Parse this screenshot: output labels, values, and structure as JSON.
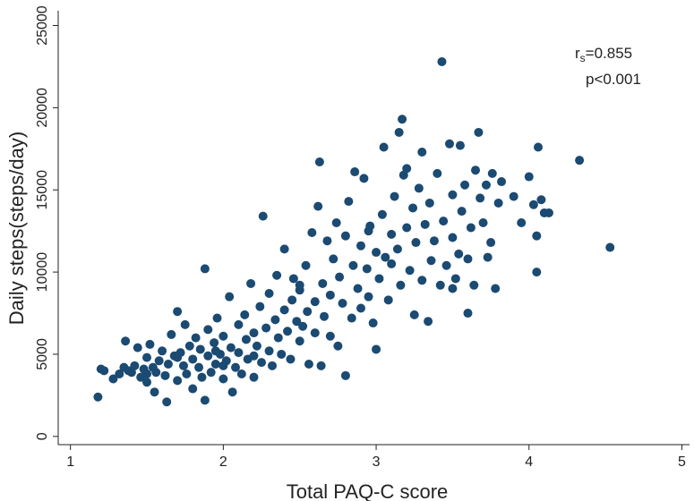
{
  "chart_data": {
    "type": "scatter",
    "x_label": "Total PAQ-C score",
    "y_label": "Daily steps(steps/day)",
    "annotation": {
      "stat_symbol": "r",
      "stat_subscript": "s",
      "stat_value": "=0.855",
      "p_value": "p<0.001"
    },
    "color": "#1b4a72",
    "xlim": [
      0.92,
      5.05
    ],
    "xticks": [
      1,
      2,
      3,
      4,
      5
    ],
    "ylim": [
      -500,
      25900
    ],
    "yticks": [
      0,
      5000,
      10000,
      15000,
      20000,
      25000
    ],
    "grid": false,
    "x": [
      1.18,
      1.2,
      1.22,
      1.28,
      1.32,
      1.35,
      1.36,
      1.38,
      1.4,
      1.42,
      1.44,
      1.46,
      1.48,
      1.5,
      1.5,
      1.52,
      1.54,
      1.55,
      1.56,
      1.58,
      1.6,
      1.62,
      1.63,
      1.64,
      1.66,
      1.68,
      1.7,
      1.7,
      1.72,
      1.74,
      1.75,
      1.76,
      1.78,
      1.8,
      1.8,
      1.82,
      1.84,
      1.85,
      1.86,
      1.88,
      1.88,
      1.9,
      1.9,
      1.92,
      1.94,
      1.95,
      1.96,
      1.98,
      2.0,
      2.0,
      2.02,
      2.04,
      2.05,
      2.06,
      2.08,
      2.1,
      2.1,
      2.12,
      2.14,
      2.15,
      2.16,
      2.18,
      2.2,
      2.2,
      2.22,
      2.24,
      2.25,
      2.26,
      2.28,
      2.3,
      2.3,
      2.32,
      2.34,
      2.35,
      2.36,
      2.38,
      2.4,
      2.4,
      2.42,
      2.44,
      2.45,
      2.46,
      2.48,
      2.5,
      2.5,
      2.52,
      2.54,
      2.55,
      2.56,
      2.58,
      2.6,
      2.6,
      2.62,
      2.63,
      2.64,
      2.65,
      2.66,
      2.68,
      2.7,
      2.7,
      2.72,
      2.74,
      2.75,
      2.76,
      2.78,
      2.8,
      2.8,
      2.82,
      2.84,
      2.85,
      2.86,
      2.88,
      2.9,
      2.9,
      2.92,
      2.94,
      2.95,
      2.96,
      2.98,
      3.0,
      3.0,
      3.02,
      3.04,
      3.05,
      3.06,
      3.08,
      3.1,
      3.12,
      3.14,
      3.15,
      3.16,
      3.17,
      3.18,
      3.2,
      3.2,
      3.22,
      3.24,
      3.25,
      3.26,
      3.28,
      3.3,
      3.3,
      3.32,
      3.34,
      3.35,
      3.36,
      3.38,
      3.4,
      3.42,
      3.43,
      3.44,
      3.46,
      3.48,
      3.5,
      3.5,
      3.52,
      3.54,
      3.55,
      3.56,
      3.58,
      3.6,
      3.62,
      3.64,
      3.65,
      3.67,
      3.68,
      3.7,
      3.72,
      3.73,
      3.75,
      3.76,
      3.78,
      3.8,
      3.82,
      3.9,
      3.95,
      4.0,
      4.03,
      4.05,
      4.06,
      4.08,
      4.1,
      4.13,
      4.05,
      4.33,
      4.53,
      3.6,
      3.5,
      2.95,
      3.1,
      2.5,
      1.5,
      1.7,
      2.0,
      2.2,
      1.95
    ],
    "values": [
      2400,
      4100,
      4000,
      3500,
      3800,
      4200,
      5800,
      4000,
      3900,
      4300,
      5400,
      3600,
      4100,
      4800,
      3300,
      5600,
      4200,
      2700,
      3900,
      4600,
      5200,
      3700,
      2100,
      4400,
      6200,
      4900,
      7600,
      3400,
      5100,
      4300,
      6800,
      3800,
      5500,
      4700,
      2900,
      6000,
      4200,
      5300,
      3600,
      2200,
      10200,
      4900,
      6500,
      3900,
      5700,
      4400,
      7200,
      5000,
      3500,
      6100,
      4600,
      8500,
      5400,
      2700,
      4200,
      6800,
      5100,
      3800,
      7400,
      5900,
      4700,
      9300,
      6300,
      3600,
      5500,
      7900,
      4500,
      13400,
      6600,
      5200,
      8700,
      4300,
      7100,
      9800,
      6000,
      5000,
      7700,
      11400,
      6400,
      4700,
      8300,
      9600,
      7000,
      5800,
      8900,
      6700,
      10400,
      7600,
      4400,
      12400,
      8200,
      6300,
      14000,
      16700,
      4300,
      9300,
      7300,
      11900,
      8600,
      6100,
      10800,
      13000,
      5500,
      9700,
      8100,
      12200,
      3700,
      14300,
      7200,
      10400,
      16100,
      9000,
      11600,
      7800,
      15700,
      10200,
      8500,
      12800,
      6900,
      11200,
      5300,
      9600,
      13500,
      17600,
      10900,
      8300,
      12300,
      14600,
      11400,
      18500,
      9200,
      19300,
      15900,
      12700,
      16300,
      10100,
      13900,
      7400,
      11800,
      15100,
      9500,
      17300,
      12900,
      7000,
      14200,
      10700,
      11900,
      16000,
      9200,
      22800,
      13100,
      10400,
      17800,
      12100,
      14700,
      9600,
      11100,
      17700,
      13700,
      15300,
      10800,
      12700,
      9200,
      16200,
      18500,
      14500,
      13000,
      15300,
      10900,
      11800,
      16000,
      9000,
      14200,
      15500,
      14600,
      13000,
      15800,
      14100,
      12200,
      17600,
      14400,
      13600,
      13600,
      10000,
      16800,
      11500,
      7500,
      9000,
      12500,
      10500,
      9200,
      3800,
      4800,
      4300,
      4900,
      5200
    ]
  }
}
